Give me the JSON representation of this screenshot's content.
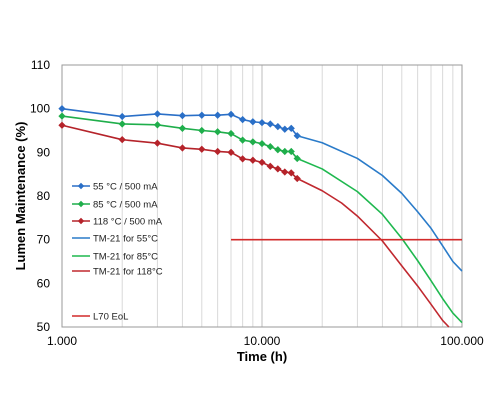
{
  "chart_data": {
    "type": "line",
    "xlabel": "Time (h)",
    "ylabel": "Lumen Maintenance (%)",
    "xscale": "log",
    "xlim": [
      1000,
      100000
    ],
    "ylim": [
      50,
      110
    ],
    "x_tick_labels": [
      "1.000",
      "10.000",
      "100.000"
    ],
    "y_ticks": [
      50,
      60,
      70,
      80,
      90,
      100,
      110
    ],
    "grid": "vertical log gridlines",
    "legend_position": "left",
    "series": [
      {
        "name": "55 °C / 500 mA",
        "kind": "measured",
        "color": "#2a6fc7",
        "marker": "diamond",
        "x": [
          1000,
          2000,
          3000,
          4000,
          5000,
          6000,
          7000,
          8000,
          9000,
          10000,
          11000,
          12000,
          13000,
          14000,
          15000
        ],
        "y": [
          100.0,
          98.2,
          98.8,
          98.4,
          98.5,
          98.5,
          98.7,
          97.5,
          97.0,
          96.8,
          96.5,
          95.9,
          95.3,
          95.5,
          93.8
        ]
      },
      {
        "name": "85 °C / 500 mA",
        "kind": "measured",
        "color": "#1fae4b",
        "marker": "diamond",
        "x": [
          1000,
          2000,
          3000,
          4000,
          5000,
          6000,
          7000,
          8000,
          9000,
          10000,
          11000,
          12000,
          13000,
          14000,
          15000
        ],
        "y": [
          98.3,
          96.5,
          96.3,
          95.5,
          95.0,
          94.7,
          94.3,
          92.8,
          92.4,
          92.0,
          91.3,
          90.6,
          90.2,
          90.2,
          88.6
        ]
      },
      {
        "name": "118 °C / 500 mA",
        "kind": "measured",
        "color": "#b5232a",
        "marker": "diamond",
        "x": [
          1000,
          2000,
          3000,
          4000,
          5000,
          6000,
          7000,
          8000,
          9000,
          10000,
          11000,
          12000,
          13000,
          14000,
          15000
        ],
        "y": [
          96.2,
          92.9,
          92.1,
          91.0,
          90.7,
          90.2,
          90.0,
          88.5,
          88.2,
          87.7,
          86.8,
          86.2,
          85.5,
          85.3,
          84.0
        ]
      },
      {
        "name": "TM-21 for 55°C",
        "kind": "projection",
        "color": "#2a7bc9",
        "x": [
          15000,
          20000,
          30000,
          40000,
          50000,
          60000,
          70000,
          80000,
          90000,
          100000
        ],
        "y": [
          93.8,
          92.2,
          88.6,
          84.7,
          80.6,
          76.4,
          72.6,
          68.6,
          65.0,
          62.8
        ]
      },
      {
        "name": "TM-21 for 85°C",
        "kind": "projection",
        "color": "#1fb84f",
        "x": [
          15000,
          20000,
          30000,
          40000,
          50000,
          60000,
          70000,
          80000,
          90000,
          100000
        ],
        "y": [
          88.6,
          86.2,
          81.0,
          75.8,
          70.3,
          65.2,
          60.6,
          56.5,
          53.2,
          51.0
        ]
      },
      {
        "name": "TM-21 for 118°C",
        "kind": "projection",
        "color": "#c0282f",
        "x": [
          15000,
          20000,
          25000,
          30000,
          40000,
          50000,
          60000,
          70000,
          80000,
          86000
        ],
        "y": [
          84.0,
          81.2,
          78.4,
          75.4,
          69.7,
          64.0,
          59.4,
          55.2,
          51.5,
          50.0
        ]
      },
      {
        "name": "L70 EoL",
        "kind": "threshold",
        "color": "#d22a2a",
        "x": [
          7000,
          100000
        ],
        "y": [
          70,
          70
        ]
      }
    ]
  }
}
